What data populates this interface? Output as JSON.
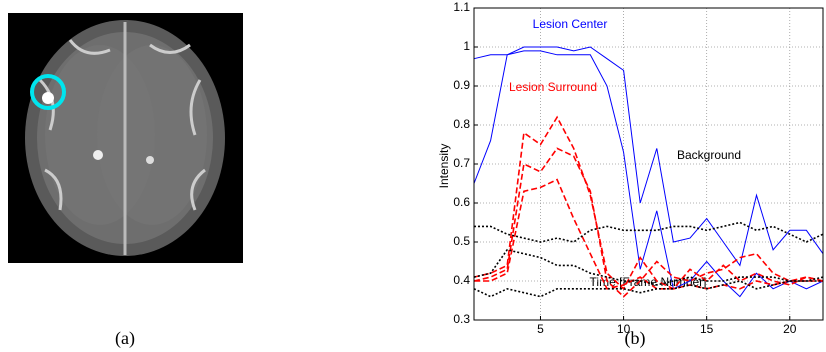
{
  "captions": [
    "(a)",
    "(b)"
  ],
  "chart_data": {
    "type": "line",
    "y_label": "Intensity",
    "x_label": "Time [Frame Number]",
    "x": [
      1,
      2,
      3,
      4,
      5,
      6,
      7,
      8,
      9,
      10,
      11,
      12,
      13,
      14,
      15,
      16,
      17,
      18,
      19,
      20,
      21,
      22
    ],
    "xlim": [
      1,
      22
    ],
    "xticks": [
      5,
      10,
      15,
      20
    ],
    "ylim": [
      0.3,
      1.1
    ],
    "yticks": [
      0.3,
      0.4,
      0.5,
      0.6,
      0.7,
      0.8,
      0.9,
      1,
      1.1
    ],
    "grid": true,
    "series": [
      {
        "name": "Lesion Center",
        "color": "#0000ff",
        "style": "solid",
        "lines": [
          [
            0.65,
            0.76,
            0.98,
            1,
            1,
            1,
            0.99,
            1,
            0.97,
            0.94,
            0.6,
            0.74,
            0.5,
            0.51,
            0.56,
            0.5,
            0.44,
            0.62,
            0.48,
            0.53,
            0.53,
            0.47
          ],
          [
            0.97,
            0.98,
            0.98,
            0.99,
            0.99,
            0.98,
            0.98,
            0.98,
            0.9,
            0.73,
            0.43,
            0.58,
            0.38,
            0.4,
            0.45,
            0.4,
            0.36,
            0.42,
            0.38,
            0.4,
            0.38,
            0.4
          ]
        ]
      },
      {
        "name": "Lesion Surround",
        "color": "#ff0000",
        "style": "dashed",
        "lines": [
          [
            0.41,
            0.42,
            0.44,
            0.78,
            0.75,
            0.82,
            0.74,
            0.62,
            0.42,
            0.38,
            0.46,
            0.4,
            0.38,
            0.43,
            0.4,
            0.44,
            0.4,
            0.42,
            0.4,
            0.39,
            0.41,
            0.4
          ],
          [
            0.4,
            0.41,
            0.43,
            0.7,
            0.68,
            0.74,
            0.72,
            0.63,
            0.4,
            0.36,
            0.4,
            0.45,
            0.41,
            0.4,
            0.42,
            0.43,
            0.46,
            0.47,
            0.42,
            0.4,
            0.41,
            0.4
          ],
          [
            0.4,
            0.4,
            0.42,
            0.63,
            0.64,
            0.66,
            0.56,
            0.47,
            0.38,
            0.39,
            0.41,
            0.38,
            0.38,
            0.39,
            0.38,
            0.39,
            0.38,
            0.4,
            0.39,
            0.4,
            0.4,
            0.4
          ]
        ]
      },
      {
        "name": "Background",
        "color": "#000000",
        "style": "dotted",
        "lines": [
          [
            0.54,
            0.54,
            0.52,
            0.51,
            0.5,
            0.51,
            0.5,
            0.53,
            0.54,
            0.53,
            0.53,
            0.53,
            0.54,
            0.54,
            0.53,
            0.54,
            0.55,
            0.53,
            0.54,
            0.52,
            0.5,
            0.52
          ],
          [
            0.41,
            0.42,
            0.48,
            0.47,
            0.46,
            0.44,
            0.44,
            0.42,
            0.41,
            0.4,
            0.4,
            0.39,
            0.4,
            0.41,
            0.4,
            0.4,
            0.41,
            0.41,
            0.41,
            0.4,
            0.4,
            0.41
          ],
          [
            0.38,
            0.36,
            0.38,
            0.37,
            0.36,
            0.38,
            0.38,
            0.38,
            0.38,
            0.38,
            0.37,
            0.38,
            0.38,
            0.39,
            0.38,
            0.39,
            0.4,
            0.38,
            0.39,
            0.4,
            0.4,
            0.4
          ]
        ]
      }
    ]
  }
}
